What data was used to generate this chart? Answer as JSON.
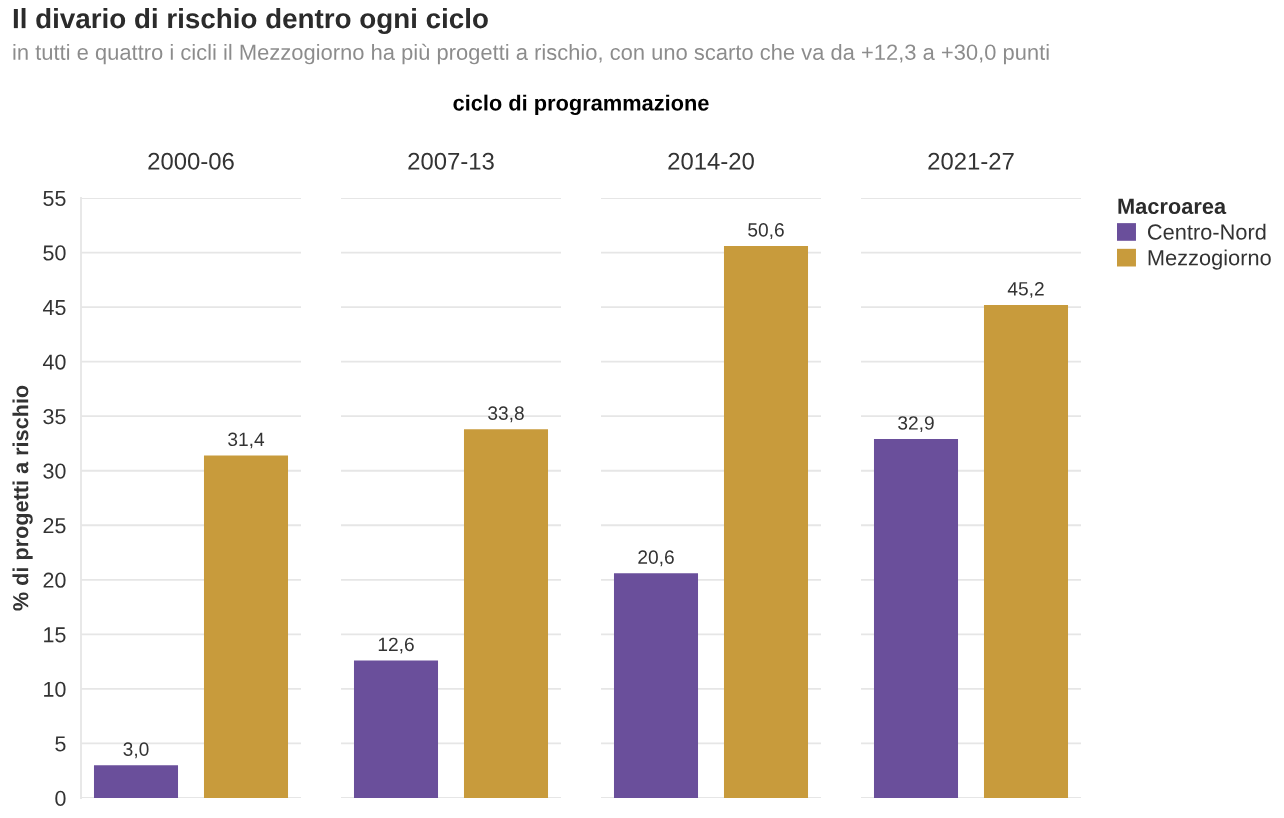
{
  "chart_data": {
    "type": "bar",
    "title": "Il divario di rischio dentro ogni ciclo",
    "subtitle": "in tutti e quattro i cicli il Mezzogiorno ha più progetti a rischio, con uno scarto che va da +12,3 a +30,0 punti",
    "xlabel": "ciclo di programmazione",
    "ylabel": "% di progetti a rischio",
    "categories": [
      "2000-06",
      "2007-13",
      "2014-20",
      "2021-27"
    ],
    "series": [
      {
        "name": "Centro-Nord",
        "color": "#6a4f9b",
        "values": [
          3.0,
          12.6,
          20.6,
          32.9
        ],
        "value_labels": [
          "3,0",
          "12,6",
          "20,6",
          "32,9"
        ]
      },
      {
        "name": "Mezzogiorno",
        "color": "#c89b3c",
        "values": [
          31.4,
          33.8,
          50.6,
          45.2
        ],
        "value_labels": [
          "31,4",
          "33,8",
          "50,6",
          "45,2"
        ]
      }
    ],
    "ylim": [
      0,
      55
    ],
    "yticks": [
      0,
      5,
      10,
      15,
      20,
      25,
      30,
      35,
      40,
      45,
      50,
      55
    ],
    "grid": "y",
    "legend": "right",
    "legend_title": "Macroarea"
  }
}
